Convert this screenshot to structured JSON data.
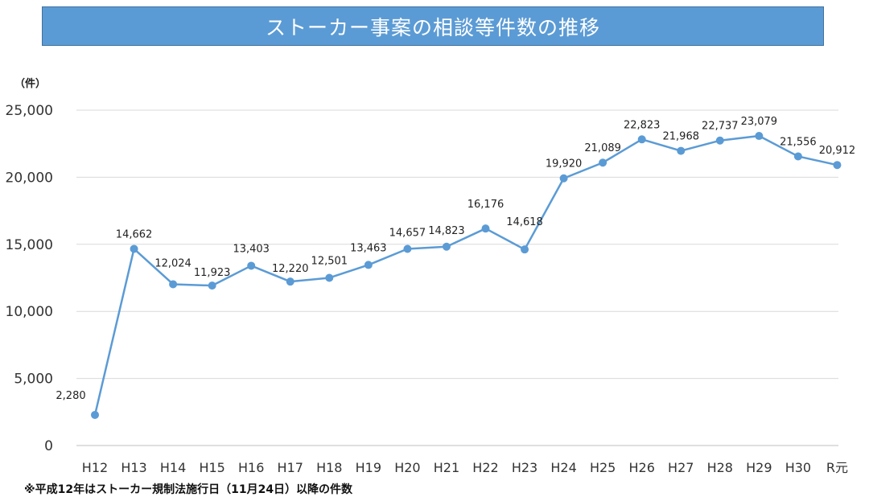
{
  "chart_data": {
    "type": "line",
    "title": "ストーカー事案の相談等件数の推移",
    "unit_label": "（件）",
    "footnote": "※平成12年はストーカー規制法施行日（11月24日）以降の件数",
    "categories": [
      "H12",
      "H13",
      "H14",
      "H15",
      "H16",
      "H17",
      "H18",
      "H19",
      "H20",
      "H21",
      "H22",
      "H23",
      "H24",
      "H25",
      "H26",
      "H27",
      "H28",
      "H29",
      "H30",
      "R元"
    ],
    "values": [
      2280,
      14662,
      12024,
      11923,
      13403,
      12220,
      12501,
      13463,
      14657,
      14823,
      16176,
      14618,
      19920,
      21089,
      22823,
      21968,
      22737,
      23079,
      21556,
      20912
    ],
    "value_labels": [
      "2,280",
      "14,662",
      "12,024",
      "11,923",
      "13,403",
      "12,220",
      "12,501",
      "13,463",
      "14,657",
      "14,823",
      "16,176",
      "14,618",
      "19,920",
      "21,089",
      "22,823",
      "21,968",
      "22,737",
      "23,079",
      "21,556",
      "20,912"
    ],
    "yticks": [
      0,
      5000,
      10000,
      15000,
      20000,
      25000
    ],
    "ytick_labels": [
      "0",
      "5,000",
      "10,000",
      "15,000",
      "20,000",
      "25,000"
    ],
    "ylim": [
      0,
      25000
    ],
    "grid": true,
    "series_color": "#5b9bd5"
  }
}
